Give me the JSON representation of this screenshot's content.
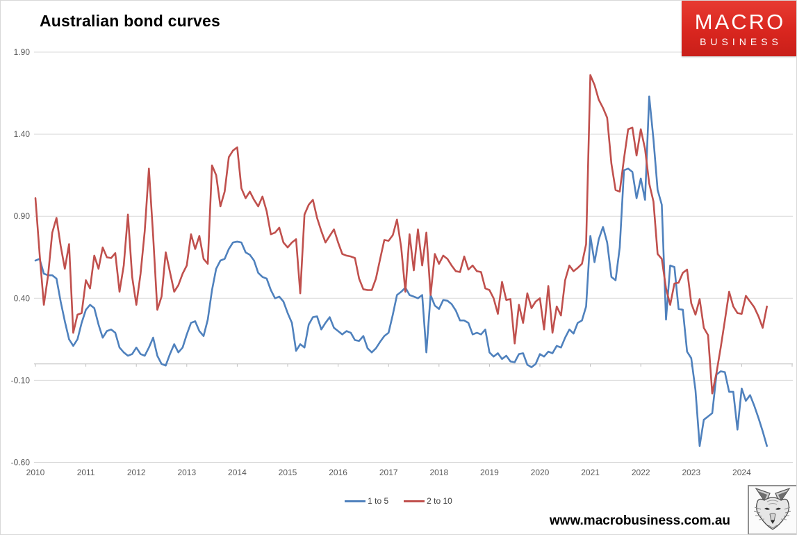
{
  "page": {
    "title": "Australian bond curves",
    "footer_url": "www.macrobusiness.com.au"
  },
  "logo": {
    "line1": "MACRO",
    "line2": "BUSINESS",
    "bg_color": "#d9261f",
    "text_color": "#ffffff"
  },
  "axis_style": {
    "label_color": "#595959",
    "grid_color": "#d9d9d9",
    "axis_color": "#bfbfbf"
  },
  "chart_data": {
    "type": "line",
    "title": "Australian bond curves",
    "x_unit": "month",
    "x_start": "2010-01",
    "x_end": "2024-07",
    "x_tick_labels": [
      "2010",
      "2011",
      "2012",
      "2013",
      "2014",
      "2015",
      "2016",
      "2017",
      "2018",
      "2019",
      "2020",
      "2021",
      "2022",
      "2023",
      "2024"
    ],
    "y_ticks": [
      1.9,
      1.4,
      0.9,
      0.4,
      -0.1,
      -0.6
    ],
    "y_tick_labels": [
      "1.90",
      "1.40",
      "0.90",
      "0.40",
      "-0.10",
      "-0.60"
    ],
    "ylim": [
      -0.6,
      1.9
    ],
    "grid": true,
    "legend_position": "bottom-center",
    "series": [
      {
        "name": "1 to 5",
        "color": "#4f81bd",
        "values": [
          0.63,
          0.64,
          0.55,
          0.54,
          0.54,
          0.52,
          0.38,
          0.26,
          0.15,
          0.11,
          0.15,
          0.25,
          0.33,
          0.36,
          0.34,
          0.24,
          0.16,
          0.2,
          0.21,
          0.19,
          0.1,
          0.07,
          0.05,
          0.06,
          0.1,
          0.06,
          0.05,
          0.1,
          0.16,
          0.05,
          0.0,
          -0.01,
          0.06,
          0.12,
          0.07,
          0.1,
          0.18,
          0.25,
          0.26,
          0.2,
          0.17,
          0.27,
          0.45,
          0.58,
          0.63,
          0.64,
          0.7,
          0.74,
          0.745,
          0.74,
          0.68,
          0.665,
          0.63,
          0.555,
          0.53,
          0.52,
          0.45,
          0.4,
          0.41,
          0.38,
          0.31,
          0.25,
          0.08,
          0.12,
          0.1,
          0.24,
          0.285,
          0.29,
          0.21,
          0.25,
          0.285,
          0.22,
          0.2,
          0.18,
          0.2,
          0.19,
          0.145,
          0.14,
          0.17,
          0.095,
          0.07,
          0.095,
          0.135,
          0.17,
          0.19,
          0.3,
          0.42,
          0.44,
          0.465,
          0.42,
          0.41,
          0.4,
          0.42,
          0.07,
          0.42,
          0.355,
          0.335,
          0.39,
          0.385,
          0.365,
          0.325,
          0.265,
          0.265,
          0.25,
          0.18,
          0.19,
          0.18,
          0.21,
          0.07,
          0.045,
          0.065,
          0.03,
          0.05,
          0.015,
          0.01,
          0.06,
          0.065,
          -0.005,
          -0.02,
          0.0,
          0.06,
          0.045,
          0.075,
          0.065,
          0.11,
          0.1,
          0.16,
          0.21,
          0.185,
          0.25,
          0.265,
          0.35,
          0.78,
          0.62,
          0.76,
          0.835,
          0.74,
          0.53,
          0.51,
          0.71,
          1.18,
          1.19,
          1.17,
          1.01,
          1.13,
          1.0,
          1.63,
          1.37,
          1.06,
          0.97,
          0.27,
          0.6,
          0.59,
          0.335,
          0.33,
          0.075,
          0.035,
          -0.16,
          -0.5,
          -0.34,
          -0.32,
          -0.3,
          -0.065,
          -0.045,
          -0.05,
          -0.17,
          -0.17,
          -0.4,
          -0.15,
          -0.225,
          -0.19,
          -0.255,
          -0.33,
          -0.41,
          -0.5
        ]
      },
      {
        "name": "2 to 10",
        "color": "#c0504d",
        "values": [
          1.01,
          0.67,
          0.36,
          0.54,
          0.8,
          0.89,
          0.72,
          0.58,
          0.73,
          0.19,
          0.3,
          0.31,
          0.51,
          0.46,
          0.66,
          0.58,
          0.71,
          0.65,
          0.645,
          0.675,
          0.44,
          0.6,
          0.91,
          0.53,
          0.36,
          0.55,
          0.81,
          1.19,
          0.78,
          0.33,
          0.41,
          0.68,
          0.56,
          0.44,
          0.48,
          0.55,
          0.6,
          0.79,
          0.7,
          0.78,
          0.64,
          0.61,
          1.21,
          1.15,
          0.96,
          1.05,
          1.26,
          1.3,
          1.32,
          1.07,
          1.01,
          1.05,
          1.0,
          0.96,
          1.02,
          0.93,
          0.79,
          0.8,
          0.83,
          0.74,
          0.71,
          0.74,
          0.76,
          0.43,
          0.91,
          0.97,
          1.0,
          0.89,
          0.81,
          0.74,
          0.78,
          0.82,
          0.74,
          0.67,
          0.66,
          0.655,
          0.645,
          0.52,
          0.455,
          0.45,
          0.45,
          0.52,
          0.64,
          0.755,
          0.75,
          0.785,
          0.88,
          0.71,
          0.44,
          0.79,
          0.57,
          0.82,
          0.6,
          0.8,
          0.42,
          0.67,
          0.61,
          0.66,
          0.64,
          0.6,
          0.565,
          0.56,
          0.655,
          0.575,
          0.6,
          0.565,
          0.56,
          0.46,
          0.45,
          0.4,
          0.305,
          0.5,
          0.39,
          0.395,
          0.125,
          0.36,
          0.25,
          0.43,
          0.34,
          0.38,
          0.4,
          0.21,
          0.475,
          0.19,
          0.35,
          0.295,
          0.51,
          0.6,
          0.565,
          0.585,
          0.61,
          0.73,
          1.76,
          1.7,
          1.61,
          1.56,
          1.5,
          1.22,
          1.06,
          1.05,
          1.25,
          1.43,
          1.44,
          1.27,
          1.43,
          1.31,
          1.1,
          0.99,
          0.67,
          0.64,
          0.46,
          0.36,
          0.49,
          0.495,
          0.555,
          0.575,
          0.37,
          0.3,
          0.395,
          0.22,
          0.175,
          -0.18,
          -0.055,
          0.1,
          0.265,
          0.44,
          0.35,
          0.31,
          0.305,
          0.415,
          0.38,
          0.345,
          0.29,
          0.22,
          0.35
        ]
      }
    ]
  }
}
